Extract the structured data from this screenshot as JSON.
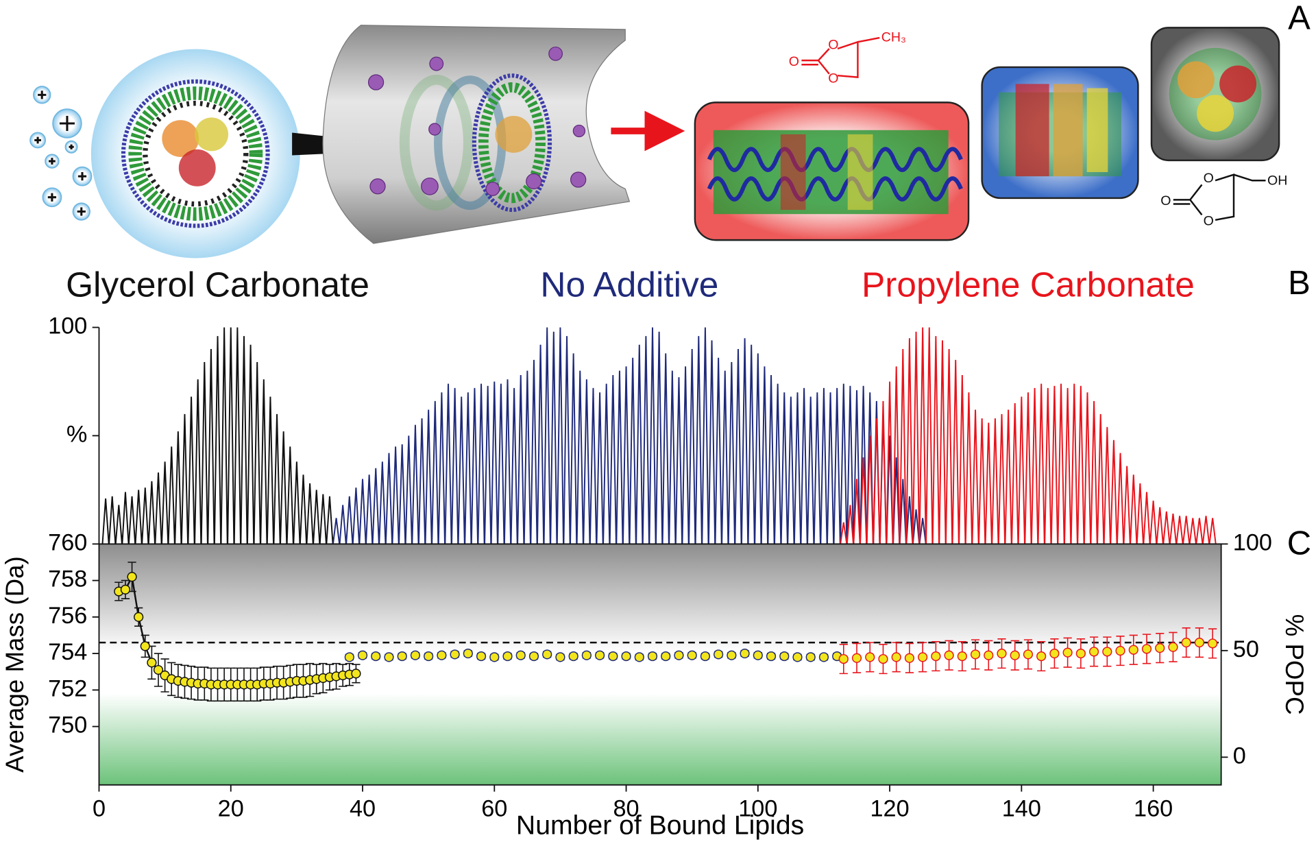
{
  "panel_labels": [
    "A",
    "B",
    "C"
  ],
  "molecules": [
    {
      "atoms": [
        "O",
        "O",
        "O",
        "CH₃"
      ]
    },
    {
      "atoms": [
        "O",
        "O",
        "O",
        "OH"
      ]
    }
  ],
  "chart_data": [
    {
      "type": "spectrum",
      "xlim": [
        0,
        170.3
      ],
      "ylim": [
        0,
        100
      ],
      "yticks": [
        100,
        {
          "value": 50,
          "label": "%"
        }
      ],
      "series": [
        {
          "name": "Glycerol Carbonate",
          "color": "#111111",
          "x": [
            1,
            2,
            3,
            4,
            5,
            6,
            7,
            8,
            9,
            10,
            11,
            12,
            13,
            14,
            15,
            16,
            17,
            18,
            19,
            20,
            21,
            22,
            23,
            24,
            25,
            26,
            27,
            28,
            29,
            30,
            31,
            32,
            33,
            34,
            35
          ],
          "values": [
            21,
            22,
            18,
            24,
            22,
            25,
            26,
            29,
            33,
            38,
            45,
            52,
            60,
            68,
            76,
            84,
            90,
            96,
            100,
            100,
            100,
            96,
            92,
            84,
            76,
            68,
            60,
            52,
            45,
            38,
            32,
            28,
            25,
            23,
            22
          ]
        },
        {
          "name": "No Additive",
          "color": "#1f2a7a",
          "x": [
            36,
            37,
            38,
            39,
            40,
            41,
            42,
            43,
            44,
            45,
            46,
            47,
            48,
            49,
            50,
            51,
            52,
            53,
            54,
            55,
            56,
            57,
            58,
            59,
            60,
            61,
            62,
            63,
            64,
            65,
            66,
            67,
            68,
            69,
            70,
            71,
            72,
            73,
            74,
            75,
            76,
            77,
            78,
            79,
            80,
            81,
            82,
            83,
            84,
            85,
            86,
            87,
            88,
            89,
            90,
            91,
            92,
            93,
            94,
            95,
            96,
            97,
            98,
            99,
            100,
            101,
            102,
            103,
            104,
            105,
            106,
            107,
            108,
            109,
            110,
            111,
            112,
            113,
            114,
            115,
            116,
            117,
            118,
            119,
            120,
            121,
            122,
            123,
            124,
            125
          ],
          "values": [
            12,
            18,
            22,
            26,
            30,
            32,
            35,
            38,
            42,
            45,
            46,
            50,
            55,
            58,
            62,
            66,
            70,
            74,
            72,
            68,
            70,
            72,
            74,
            73,
            75,
            74,
            76,
            72,
            78,
            80,
            85,
            92,
            100,
            98,
            100,
            96,
            88,
            80,
            76,
            72,
            70,
            74,
            78,
            80,
            82,
            86,
            92,
            96,
            100,
            98,
            88,
            80,
            77,
            82,
            90,
            96,
            100,
            94,
            86,
            80,
            84,
            90,
            95,
            92,
            88,
            82,
            78,
            74,
            70,
            68,
            70,
            72,
            68,
            70,
            72,
            70,
            72,
            74,
            73,
            71,
            73,
            70,
            66,
            60,
            50,
            40,
            30,
            22,
            16,
            12
          ]
        },
        {
          "name": "Propylene Carbonate",
          "color": "#e8141c",
          "x": [
            113,
            114,
            115,
            116,
            117,
            118,
            119,
            120,
            121,
            122,
            123,
            124,
            125,
            126,
            127,
            128,
            129,
            130,
            131,
            132,
            133,
            134,
            135,
            136,
            137,
            138,
            139,
            140,
            141,
            142,
            143,
            144,
            145,
            146,
            147,
            148,
            149,
            150,
            151,
            152,
            153,
            154,
            155,
            156,
            157,
            158,
            159,
            160,
            161,
            162,
            163,
            164,
            165,
            166,
            167,
            168,
            169
          ],
          "values": [
            10,
            18,
            30,
            40,
            50,
            58,
            66,
            75,
            82,
            90,
            95,
            98,
            100,
            100,
            96,
            94,
            90,
            85,
            78,
            70,
            62,
            58,
            56,
            58,
            60,
            62,
            65,
            68,
            70,
            72,
            74,
            72,
            73,
            74,
            72,
            74,
            73,
            70,
            66,
            60,
            54,
            48,
            42,
            36,
            32,
            28,
            24,
            20,
            17,
            15,
            14,
            13,
            13,
            12,
            12,
            13,
            12
          ]
        }
      ]
    },
    {
      "type": "scatter",
      "xlabel": "Number of Bound Lipids",
      "ylabel": "Average Mass (Da)",
      "y2label": "% POPC",
      "xlim": [
        0,
        170.3
      ],
      "xticks": [
        0,
        20,
        40,
        60,
        80,
        100,
        120,
        140,
        160
      ],
      "ylim": [
        746.8,
        760
      ],
      "yticks": [
        750,
        752,
        754,
        756,
        758,
        760
      ],
      "y2lim": [
        -13,
        100
      ],
      "y2ticks": [
        0,
        50,
        100
      ],
      "reference_line": 754.6,
      "point_color": "#f2e51d",
      "series": [
        {
          "name": "Glycerol Carbonate",
          "color": "#111111",
          "line": true,
          "x": [
            3,
            4,
            5,
            6,
            7,
            8,
            9,
            10,
            11,
            12,
            13,
            14,
            15,
            16,
            17,
            18,
            19,
            20,
            21,
            22,
            23,
            24,
            25,
            26,
            27,
            28,
            29,
            30,
            31,
            32,
            33,
            34,
            35,
            36,
            37,
            38,
            39
          ],
          "values": [
            757.4,
            757.5,
            758.2,
            756.0,
            754.4,
            753.5,
            753.1,
            752.8,
            752.6,
            752.5,
            752.45,
            752.4,
            752.35,
            752.35,
            752.3,
            752.3,
            752.3,
            752.3,
            752.3,
            752.3,
            752.3,
            752.3,
            752.35,
            752.35,
            752.4,
            752.4,
            752.45,
            752.5,
            752.5,
            752.55,
            752.6,
            752.65,
            752.7,
            752.75,
            752.8,
            752.85,
            752.9
          ],
          "errors": [
            0.5,
            0.5,
            0.8,
            0.5,
            0.6,
            0.9,
            0.9,
            0.9,
            0.9,
            0.9,
            0.9,
            0.9,
            0.9,
            0.9,
            0.9,
            0.9,
            0.9,
            0.9,
            0.9,
            0.9,
            0.9,
            0.9,
            0.9,
            0.9,
            0.9,
            0.9,
            0.9,
            0.9,
            0.9,
            0.9,
            0.8,
            0.8,
            0.7,
            0.7,
            0.6,
            0.6,
            0.5
          ]
        },
        {
          "name": "No Additive",
          "color": "#1f2a7a",
          "line": false,
          "x": [
            38,
            40,
            42,
            44,
            46,
            48,
            50,
            52,
            54,
            56,
            58,
            60,
            62,
            64,
            66,
            68,
            70,
            72,
            74,
            76,
            78,
            80,
            82,
            84,
            86,
            88,
            90,
            92,
            94,
            96,
            98,
            100,
            102,
            104,
            106,
            108,
            110,
            112
          ],
          "values": [
            753.8,
            753.9,
            753.85,
            753.8,
            753.85,
            753.9,
            753.85,
            753.9,
            753.95,
            754.0,
            753.85,
            753.8,
            753.85,
            753.9,
            753.85,
            753.95,
            753.8,
            753.85,
            753.9,
            753.9,
            753.85,
            753.85,
            753.8,
            753.85,
            753.85,
            753.9,
            753.9,
            753.85,
            753.95,
            753.9,
            754.0,
            753.9,
            753.85,
            753.85,
            753.8,
            753.8,
            753.8,
            753.85
          ],
          "errors": [
            0.15,
            0.15,
            0.15,
            0.15,
            0.15,
            0.15,
            0.15,
            0.15,
            0.15,
            0.15,
            0.15,
            0.15,
            0.15,
            0.15,
            0.15,
            0.15,
            0.15,
            0.15,
            0.15,
            0.15,
            0.15,
            0.15,
            0.15,
            0.15,
            0.15,
            0.15,
            0.15,
            0.15,
            0.15,
            0.15,
            0.15,
            0.15,
            0.15,
            0.15,
            0.15,
            0.15,
            0.15,
            0.15
          ]
        },
        {
          "name": "Propylene Carbonate",
          "color": "#e8141c",
          "line": false,
          "x": [
            113,
            115,
            117,
            119,
            121,
            123,
            125,
            127,
            129,
            131,
            133,
            135,
            137,
            139,
            141,
            143,
            145,
            147,
            149,
            151,
            153,
            155,
            157,
            159,
            161,
            163,
            165,
            167,
            169
          ],
          "values": [
            753.7,
            753.75,
            753.8,
            753.7,
            753.8,
            753.75,
            753.8,
            753.85,
            753.9,
            753.85,
            753.95,
            753.9,
            754.0,
            753.9,
            753.95,
            753.85,
            754.0,
            754.05,
            754.0,
            754.1,
            754.1,
            754.15,
            754.2,
            754.25,
            754.3,
            754.35,
            754.6,
            754.6,
            754.55
          ],
          "errors": [
            0.8,
            0.8,
            0.8,
            0.8,
            0.8,
            0.8,
            0.8,
            0.8,
            0.8,
            0.8,
            0.8,
            0.8,
            0.8,
            0.8,
            0.8,
            0.8,
            0.8,
            0.8,
            0.8,
            0.8,
            0.8,
            0.8,
            0.8,
            0.8,
            0.8,
            0.8,
            0.8,
            0.8,
            0.8
          ]
        }
      ]
    }
  ]
}
